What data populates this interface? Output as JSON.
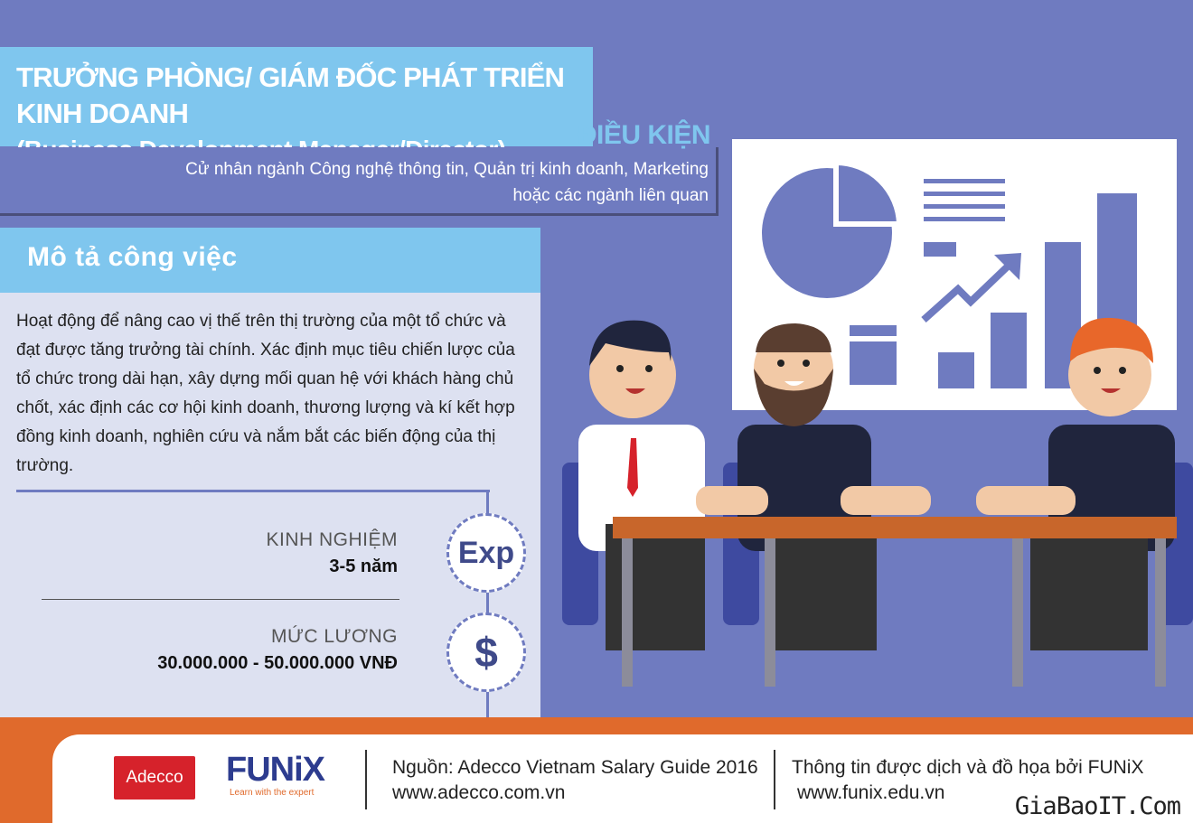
{
  "title": {
    "line1": "TRƯỞNG PHÒNG/ GIÁM ĐỐC PHÁT TRIỂN KINH DOANH",
    "line2": "(Business Development Manager/Director)"
  },
  "requirements": {
    "heading": "ĐIỀU KIỆN",
    "line1": "Cử nhân ngành Công nghệ thông tin, Quản trị kinh doanh, Marketing",
    "line2": "hoặc các ngành liên quan"
  },
  "description": {
    "heading": "Mô tả công việc",
    "text": "Hoạt động để nâng cao vị thế trên thị trường của một tổ chức và đạt được tăng trưởng tài chính. Xác định mục tiêu chiến lược của tổ chức trong dài hạn, xây dựng mối quan hệ với khách hàng chủ chốt, xác định các cơ hội kinh doanh, thương lượng và kí kết hợp đồng kinh doanh, nghiên cứu và nắm bắt các biến động của thị trường."
  },
  "experience": {
    "label": "KINH NGHIỆM",
    "value": "3-5 năm",
    "badge": "Exp"
  },
  "salary": {
    "label": "MỨC LƯƠNG",
    "value": "30.000.000 - 50.000.000 VNĐ",
    "badge": "$"
  },
  "footer": {
    "adecco_logo": "Adecco",
    "funix_logo": "FUNiX",
    "funix_tagline": "Learn with the expert",
    "source_line1": "Nguồn: Adecco Vietnam Salary Guide 2016",
    "source_line2": "www.adecco.com.vn",
    "credit_line1": "Thông tin được dịch và đồ họa bởi FUNiX",
    "credit_line2": "www.funix.edu.vn"
  },
  "watermark": "GiaBaoIT.Com",
  "colors": {
    "background": "#6f7bc0",
    "accent_light_blue": "#7fc6ee",
    "panel": "#dde1f1",
    "footer_orange": "#e06a2c",
    "adecco_red": "#d6222b",
    "funix_blue": "#2d3c8f"
  }
}
